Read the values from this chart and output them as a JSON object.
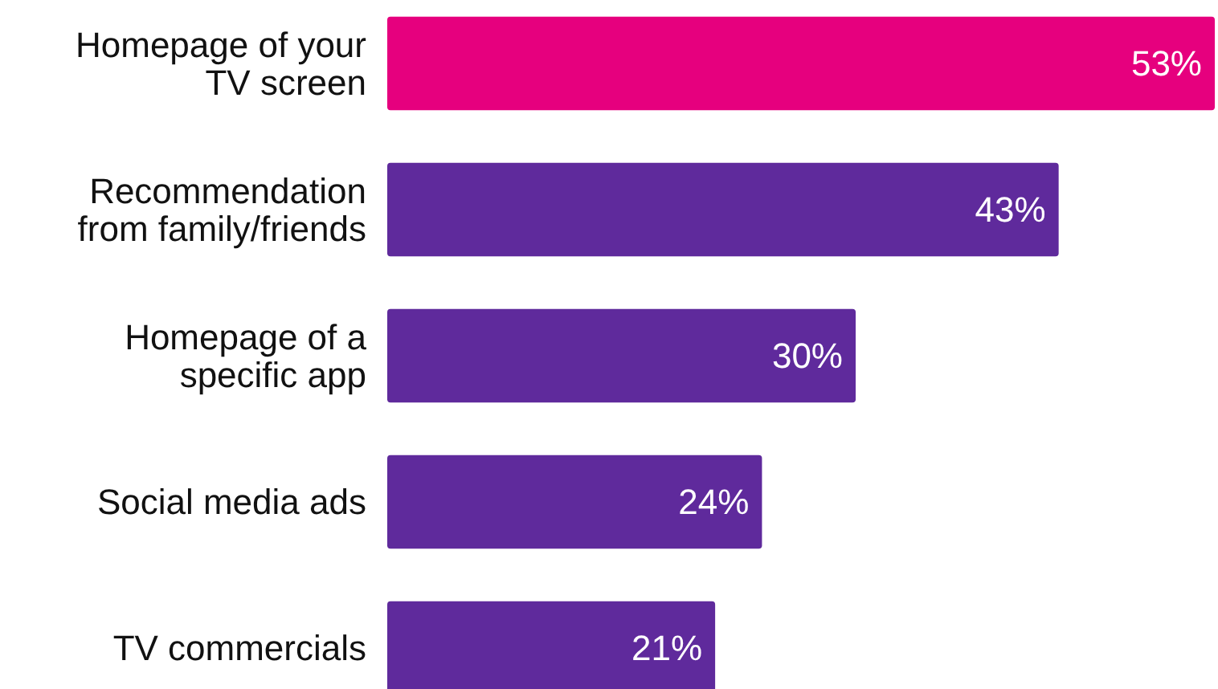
{
  "chart_data": {
    "type": "bar",
    "orientation": "horizontal",
    "categories": [
      "Homepage of your TV screen",
      "Recommendation from family/friends",
      "Homepage of a specific app",
      "Social media ads",
      "TV commercials"
    ],
    "values": [
      53,
      43,
      30,
      24,
      21
    ],
    "colors": [
      "#e6007e",
      "#5f2a9c",
      "#5f2a9c",
      "#5f2a9c",
      "#5f2a9c"
    ],
    "value_labels": [
      "53%",
      "43%",
      "30%",
      "24%",
      "21%"
    ]
  }
}
